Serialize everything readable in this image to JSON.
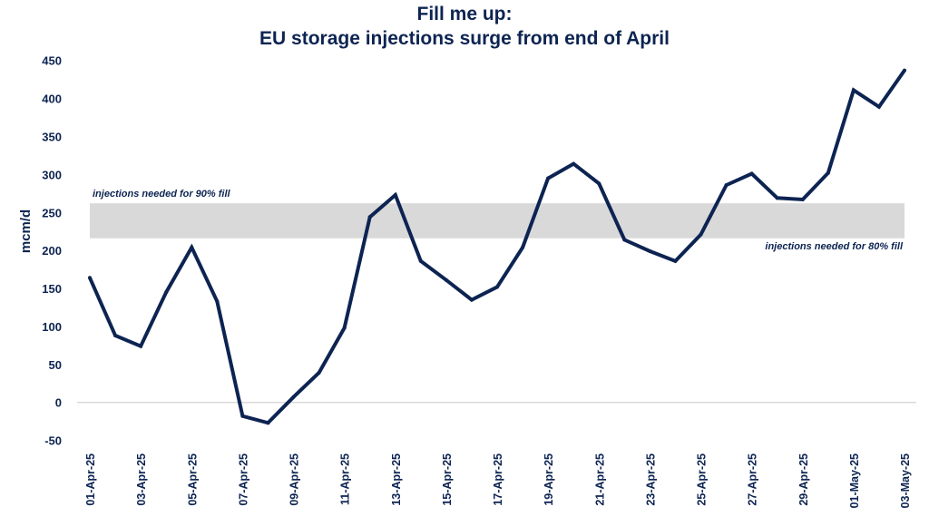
{
  "chart_data": {
    "type": "line",
    "title": "Fill me up:",
    "subtitle": "EU storage injections surge from end of April",
    "ylabel": "mcm/d",
    "xlabel": "",
    "ylim": [
      -50,
      450
    ],
    "yticks": [
      -50,
      0,
      50,
      100,
      150,
      200,
      250,
      300,
      350,
      400,
      450
    ],
    "grid": false,
    "x": [
      "01-Apr-25",
      "02-Apr-25",
      "03-Apr-25",
      "04-Apr-25",
      "05-Apr-25",
      "06-Apr-25",
      "07-Apr-25",
      "08-Apr-25",
      "09-Apr-25",
      "10-Apr-25",
      "11-Apr-25",
      "12-Apr-25",
      "13-Apr-25",
      "14-Apr-25",
      "15-Apr-25",
      "16-Apr-25",
      "17-Apr-25",
      "18-Apr-25",
      "19-Apr-25",
      "20-Apr-25",
      "21-Apr-25",
      "22-Apr-25",
      "23-Apr-25",
      "24-Apr-25",
      "25-Apr-25",
      "26-Apr-25",
      "27-Apr-25",
      "28-Apr-25",
      "29-Apr-25",
      "30-Apr-25",
      "01-May-25",
      "02-May-25",
      "03-May-25"
    ],
    "xticklabels": [
      "01-Apr-25",
      "03-Apr-25",
      "05-Apr-25",
      "07-Apr-25",
      "09-Apr-25",
      "11-Apr-25",
      "13-Apr-25",
      "15-Apr-25",
      "17-Apr-25",
      "19-Apr-25",
      "21-Apr-25",
      "23-Apr-25",
      "25-Apr-25",
      "27-Apr-25",
      "29-Apr-25",
      "01-May-25",
      "03-May-25"
    ],
    "series": [
      {
        "values": [
          164,
          88,
          74,
          145,
          204,
          133,
          -18,
          -27,
          7,
          39,
          98,
          244,
          273,
          186,
          161,
          135,
          152,
          204,
          295,
          314,
          288,
          214,
          199,
          186,
          221,
          286,
          301,
          269,
          267,
          302,
          411,
          389,
          437
        ],
        "color": "#0d2452"
      }
    ],
    "band": {
      "low": 216,
      "high": 262,
      "color": "#d9d9d9"
    },
    "annotations": [
      "injections needed for 90% fill",
      "injections needed for 80% fill"
    ]
  }
}
